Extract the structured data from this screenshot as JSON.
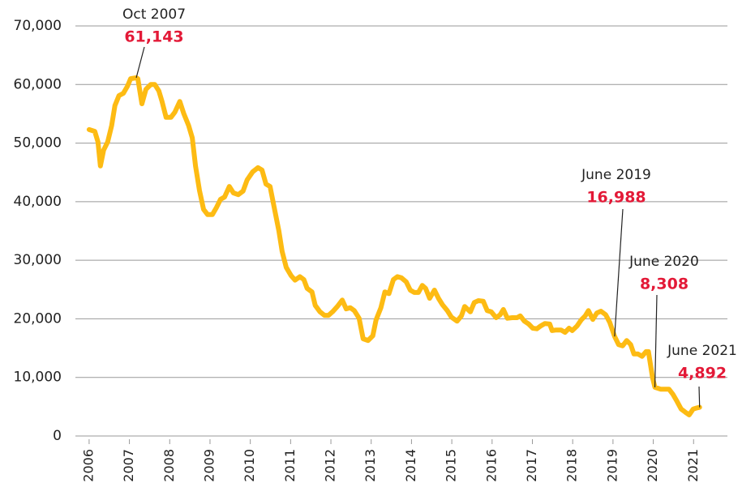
{
  "chart_data": {
    "type": "line",
    "xlim": [
      2005.66,
      2021.84
    ],
    "xticks": [
      2006,
      2007,
      2008,
      2009,
      2010,
      2011,
      2012,
      2013,
      2014,
      2015,
      2016,
      2017,
      2018,
      2019,
      2020,
      2021
    ],
    "ylim": [
      0,
      70000
    ],
    "yticks": [
      {
        "value": 0,
        "label": "0"
      },
      {
        "value": 10000,
        "label": "10,000"
      },
      {
        "value": 20000,
        "label": "20,000"
      },
      {
        "value": 30000,
        "label": "30,000"
      },
      {
        "value": 40000,
        "label": "40,000"
      },
      {
        "value": 50000,
        "label": "50,000"
      },
      {
        "value": 60000,
        "label": "60,000"
      },
      {
        "value": 70000,
        "label": "70,000"
      }
    ],
    "grid": true,
    "series": [
      {
        "color": "#fdbb13",
        "x": [
          2006.0,
          2006.14,
          2006.22,
          2006.28,
          2006.36,
          2006.46,
          2006.56,
          2006.64,
          2006.74,
          2006.85,
          2006.95,
          2007.03,
          2007.17,
          2007.21,
          2007.31,
          2007.41,
          2007.53,
          2007.63,
          2007.73,
          2007.81,
          2007.91,
          2008.03,
          2008.13,
          2008.25,
          2008.35,
          2008.47,
          2008.56,
          2008.64,
          2008.74,
          2008.84,
          2008.94,
          2009.06,
          2009.16,
          2009.26,
          2009.36,
          2009.48,
          2009.58,
          2009.7,
          2009.82,
          2009.92,
          2010.06,
          2010.19,
          2010.29,
          2010.39,
          2010.49,
          2010.59,
          2010.71,
          2010.79,
          2010.89,
          2011.01,
          2011.11,
          2011.23,
          2011.33,
          2011.41,
          2011.53,
          2011.61,
          2011.73,
          2011.84,
          2011.94,
          2012.04,
          2012.16,
          2012.28,
          2012.38,
          2012.48,
          2012.58,
          2012.7,
          2012.8,
          2012.92,
          2013.04,
          2013.12,
          2013.24,
          2013.34,
          2013.44,
          2013.55,
          2013.65,
          2013.75,
          2013.87,
          2013.97,
          2014.07,
          2014.17,
          2014.27,
          2014.35,
          2014.45,
          2014.57,
          2014.67,
          2014.77,
          2014.89,
          2014.99,
          2015.13,
          2015.24,
          2015.32,
          2015.46,
          2015.56,
          2015.66,
          2015.78,
          2015.88,
          2015.98,
          2016.1,
          2016.2,
          2016.28,
          2016.38,
          2016.5,
          2016.62,
          2016.7,
          2016.8,
          2016.91,
          2017.01,
          2017.11,
          2017.21,
          2017.31,
          2017.43,
          2017.49,
          2017.59,
          2017.71,
          2017.81,
          2017.91,
          2017.99,
          2018.11,
          2018.21,
          2018.31,
          2018.39,
          2018.5,
          2018.6,
          2018.7,
          2018.82,
          2018.92,
          2019.04,
          2019.14,
          2019.24,
          2019.34,
          2019.44,
          2019.52,
          2019.62,
          2019.72,
          2019.82,
          2019.88,
          2019.98,
          2020.04,
          2020.18,
          2020.29,
          2020.39,
          2020.49,
          2020.59,
          2020.69,
          2020.79,
          2020.89,
          2020.99,
          2021.09,
          2021.15
        ],
        "values": [
          52300,
          52000,
          50200,
          46100,
          48800,
          50200,
          53000,
          56400,
          58100,
          58500,
          59700,
          61000,
          61143,
          61000,
          56700,
          59200,
          60000,
          60000,
          58900,
          57100,
          54400,
          54400,
          55300,
          57100,
          55000,
          53000,
          50900,
          46100,
          41900,
          38700,
          37800,
          37800,
          39000,
          40400,
          40800,
          42600,
          41500,
          41200,
          41800,
          43700,
          45100,
          45800,
          45400,
          43000,
          42600,
          39100,
          35000,
          31500,
          28800,
          27400,
          26600,
          27200,
          26700,
          25200,
          24600,
          22300,
          21200,
          20600,
          20600,
          21200,
          22100,
          23200,
          21700,
          21900,
          21400,
          20100,
          16600,
          16300,
          17100,
          19800,
          21900,
          24600,
          24300,
          26700,
          27200,
          27000,
          26300,
          24900,
          24500,
          24500,
          25700,
          25200,
          23500,
          24900,
          23500,
          22400,
          21400,
          20300,
          19600,
          20500,
          22100,
          21200,
          22800,
          23100,
          23000,
          21400,
          21200,
          20200,
          20700,
          21600,
          20100,
          20200,
          20200,
          20500,
          19600,
          19100,
          18400,
          18300,
          18800,
          19200,
          19100,
          18000,
          18100,
          18100,
          17700,
          18400,
          18000,
          18800,
          19800,
          20500,
          21400,
          19900,
          21000,
          21300,
          20700,
          19400,
          16988,
          15600,
          15400,
          16300,
          15600,
          14000,
          14000,
          13600,
          14400,
          14400,
          10000,
          8308,
          8000,
          8000,
          8000,
          7100,
          5900,
          4600,
          4100,
          3600,
          4600,
          4800,
          4892
        ]
      }
    ],
    "annotations": [
      {
        "label": "Oct 2007",
        "x": 2007.17,
        "value": 61143,
        "value_label": "61,143"
      },
      {
        "label": "June 2019",
        "x": 2019.04,
        "value": 16988,
        "value_label": "16,988"
      },
      {
        "label": "June 2020",
        "x": 2020.04,
        "value": 8308,
        "value_label": "8,308"
      },
      {
        "label": "June 2021",
        "x": 2021.15,
        "value": 4892,
        "value_label": "4,892"
      }
    ]
  }
}
